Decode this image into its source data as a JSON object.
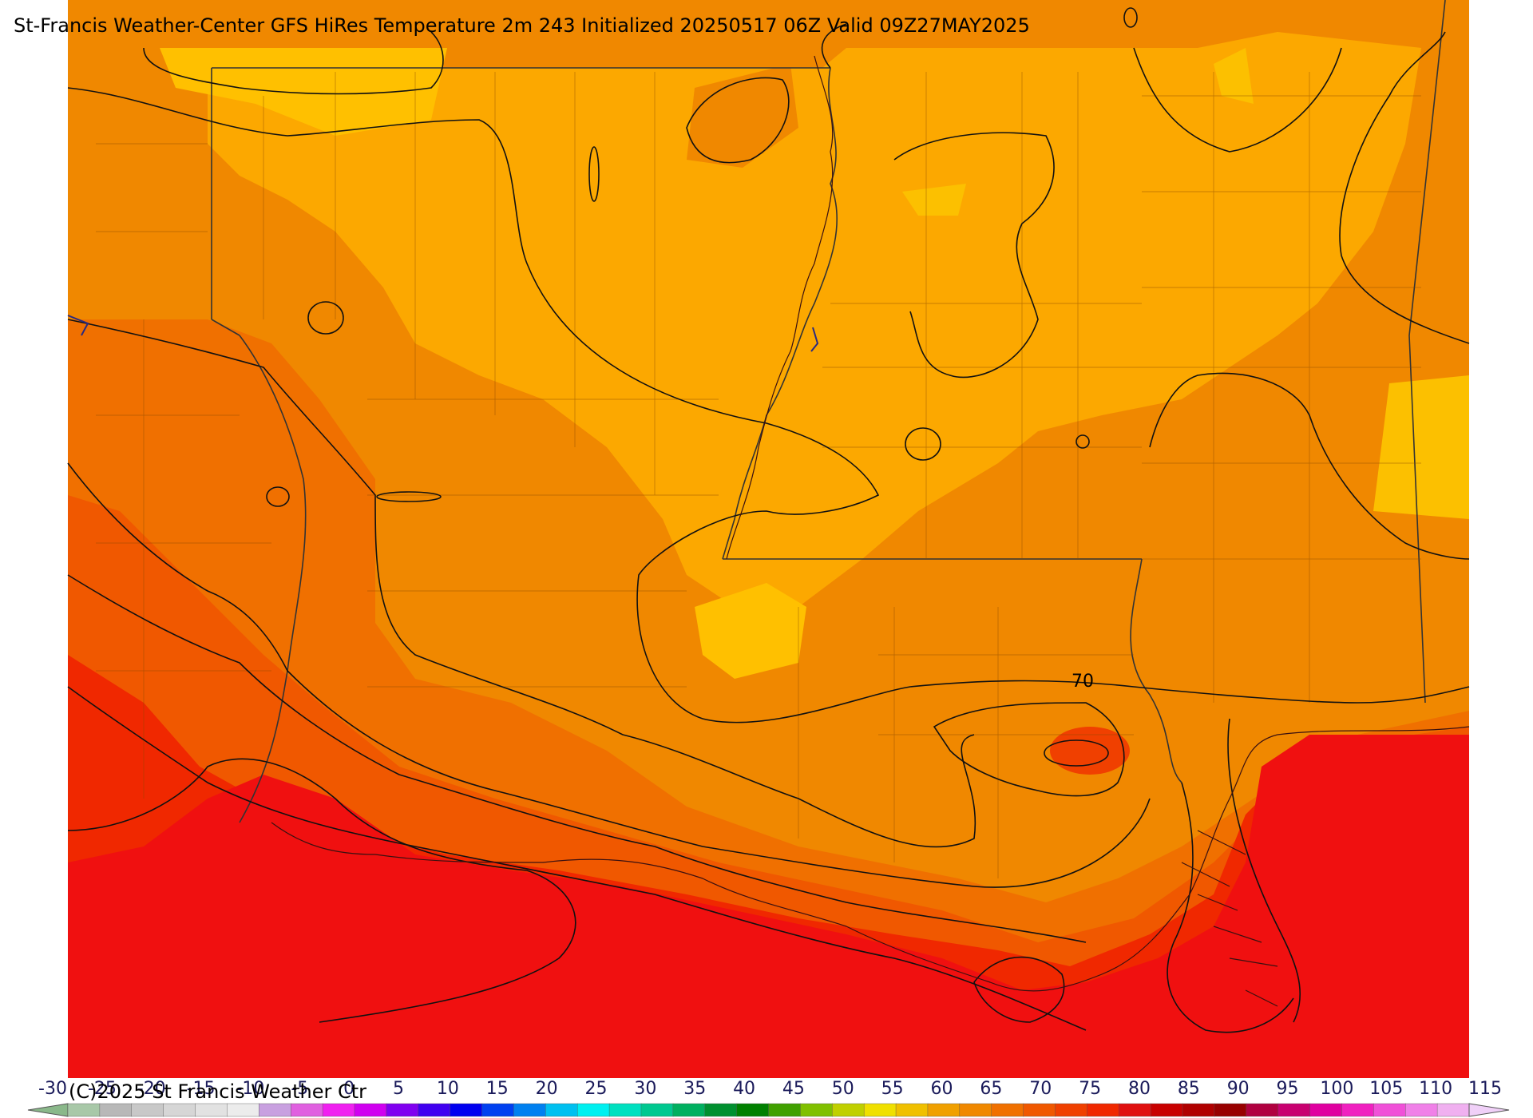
{
  "title": "St-Francis Weather-Center GFS HiRes Temperature 2m  243 Initialized 20250517 06Z Valid 09Z27MAY2025",
  "copyright": "(C)2025 St Francis Weather Ctr",
  "contour_label": "70",
  "colorbar": {
    "ticks": [
      "-30",
      "-25",
      "-20",
      "-15",
      "-10",
      "-5",
      "0",
      "5",
      "10",
      "15",
      "20",
      "25",
      "30",
      "35",
      "40",
      "45",
      "50",
      "55",
      "60",
      "65",
      "70",
      "75",
      "80",
      "85",
      "90",
      "95",
      "100",
      "105",
      "110",
      "115"
    ],
    "colors": [
      "#a8c8a8",
      "#b8b8b8",
      "#c8c8c8",
      "#d6d6d6",
      "#e2e2e2",
      "#ececec",
      "#c8a0e0",
      "#e060e0",
      "#f020f0",
      "#d000f0",
      "#8000f0",
      "#4000f0",
      "#0000f0",
      "#0040f0",
      "#0080f0",
      "#00c0f0",
      "#00f0f0",
      "#00e0c0",
      "#00c890",
      "#00b060",
      "#009030",
      "#008000",
      "#40a000",
      "#80c000",
      "#c0d000",
      "#f0e000",
      "#f0c000",
      "#f0a000",
      "#f08800",
      "#f07000",
      "#f05800",
      "#f04000",
      "#f02800",
      "#e01010",
      "#c80000",
      "#b00000",
      "#980000",
      "#b00040",
      "#c80070",
      "#e000a0",
      "#f020c0",
      "#f050d8",
      "#f080e8",
      "#f0b0f0"
    ]
  }
}
